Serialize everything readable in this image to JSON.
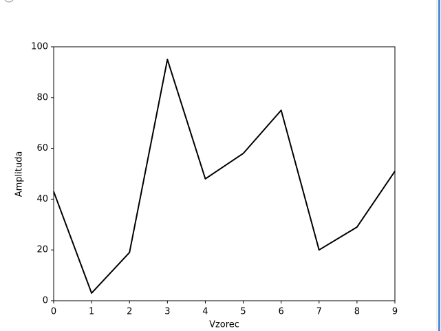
{
  "chart_data": {
    "type": "line",
    "x_label": "Vzorec",
    "y_label": "Amplituda",
    "x": [
      0,
      1,
      2,
      3,
      4,
      5,
      6,
      7,
      8,
      9
    ],
    "series": [
      {
        "color": "#000000",
        "values": [
          43,
          3,
          19,
          95,
          48,
          58,
          75,
          20,
          29,
          51
        ]
      }
    ],
    "xlim": [
      0,
      9
    ],
    "xticks": [
      0,
      1,
      2,
      3,
      4,
      5,
      6,
      7,
      8,
      9
    ],
    "ylim": [
      0,
      100
    ],
    "yticks": [
      0,
      20,
      40,
      60,
      80,
      100
    ]
  }
}
